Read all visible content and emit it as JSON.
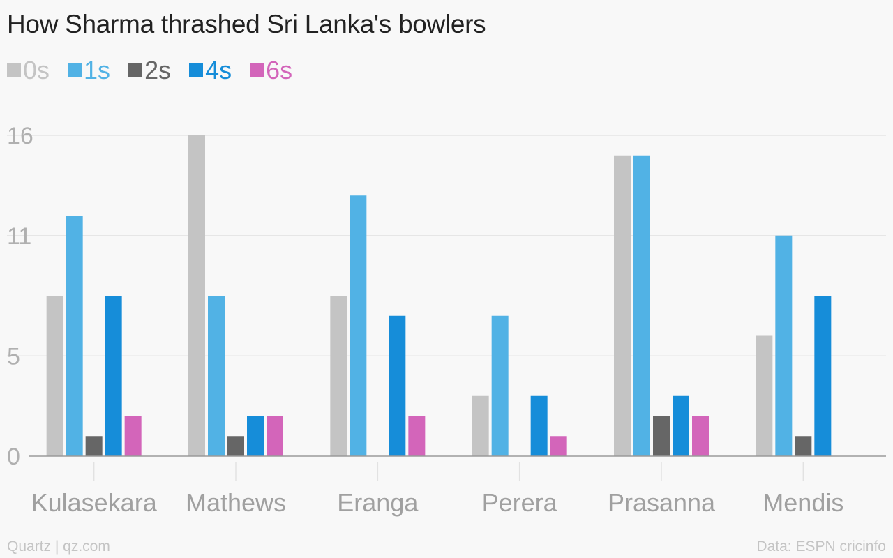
{
  "chart_data": {
    "type": "bar",
    "title": "How Sharma thrashed Sri Lanka's bowlers",
    "categories": [
      "Kulasekara",
      "Mathews",
      "Eranga",
      "Perera",
      "Prasanna",
      "Mendis"
    ],
    "series": [
      {
        "name": "0s",
        "color": "#c4c4c4",
        "values": [
          8,
          16,
          8,
          3,
          15,
          6
        ]
      },
      {
        "name": "1s",
        "color": "#51b2e5",
        "values": [
          12,
          8,
          13,
          7,
          15,
          11
        ]
      },
      {
        "name": "2s",
        "color": "#666666",
        "values": [
          1,
          1,
          0,
          0,
          2,
          1
        ]
      },
      {
        "name": "4s",
        "color": "#168dd9",
        "values": [
          8,
          2,
          7,
          3,
          3,
          8
        ]
      },
      {
        "name": "6s",
        "color": "#d365ba",
        "values": [
          2,
          2,
          2,
          1,
          2,
          0
        ]
      }
    ],
    "yticks": [
      "0",
      "5",
      "11",
      "16"
    ],
    "ylim": [
      0,
      16
    ],
    "grid": true,
    "legend": "top-left"
  },
  "footer": {
    "credit": "Quartz | qz.com",
    "source": "Data: ESPN cricinfo"
  }
}
